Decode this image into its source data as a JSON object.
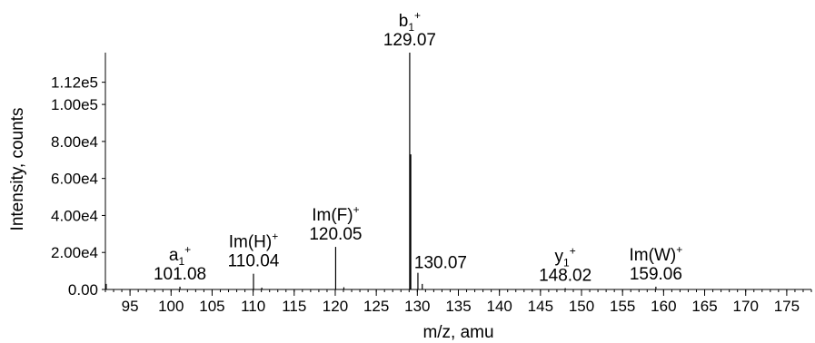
{
  "chart_data": {
    "type": "bar",
    "title": "",
    "xlabel": "m/z, amu",
    "ylabel": "Intensity, counts",
    "xlim": [
      92,
      178
    ],
    "ylim": [
      0,
      128000
    ],
    "xticks": [
      95,
      100,
      105,
      110,
      115,
      120,
      125,
      130,
      135,
      140,
      145,
      150,
      155,
      160,
      165,
      170,
      175
    ],
    "xtick_labels": [
      "95",
      "100",
      "105",
      "110",
      "115",
      "120",
      "125",
      "130",
      "135",
      "140",
      "145",
      "150",
      "155",
      "160",
      "165",
      "170",
      "175"
    ],
    "yticks": [
      0,
      20000,
      40000,
      60000,
      80000,
      100000,
      112000
    ],
    "ytick_labels": [
      "0.00",
      "2.00e4",
      "4.00e4",
      "6.00e4",
      "8.00e4",
      "1.00e5",
      "1.12e5"
    ],
    "peaks": [
      {
        "mz": 92.1,
        "intensity": 3000
      },
      {
        "mz": 101.08,
        "intensity": 1500
      },
      {
        "mz": 110.04,
        "intensity": 8500
      },
      {
        "mz": 111.05,
        "intensity": 1000
      },
      {
        "mz": 120.05,
        "intensity": 23000
      },
      {
        "mz": 121.05,
        "intensity": 1200
      },
      {
        "mz": 129.07,
        "intensity": 128000
      },
      {
        "mz": 129.2,
        "intensity": 73000
      },
      {
        "mz": 130.07,
        "intensity": 9000
      },
      {
        "mz": 130.6,
        "intensity": 3000
      },
      {
        "mz": 148.02,
        "intensity": 700
      },
      {
        "mz": 159.06,
        "intensity": 1500
      }
    ],
    "annotations": [
      {
        "mz": 101.08,
        "ion": "a",
        "sub": "1",
        "sup": "+",
        "value": "101.08"
      },
      {
        "mz": 110.04,
        "ion": "Im(H)",
        "sub": "",
        "sup": "+",
        "value": "110.04"
      },
      {
        "mz": 120.05,
        "ion": "Im(F)",
        "sub": "",
        "sup": "+",
        "value": "120.05"
      },
      {
        "mz": 129.07,
        "ion": "b",
        "sub": "1",
        "sup": "+",
        "value": "129.07"
      },
      {
        "mz": 130.07,
        "ion": "",
        "sub": "",
        "sup": "",
        "value": "130.07"
      },
      {
        "mz": 148.02,
        "ion": "y",
        "sub": "1",
        "sup": "+",
        "value": "148.02"
      },
      {
        "mz": 159.06,
        "ion": "Im(W)",
        "sub": "",
        "sup": "+",
        "value": "159.06"
      }
    ],
    "grid": false,
    "legend": "none"
  }
}
